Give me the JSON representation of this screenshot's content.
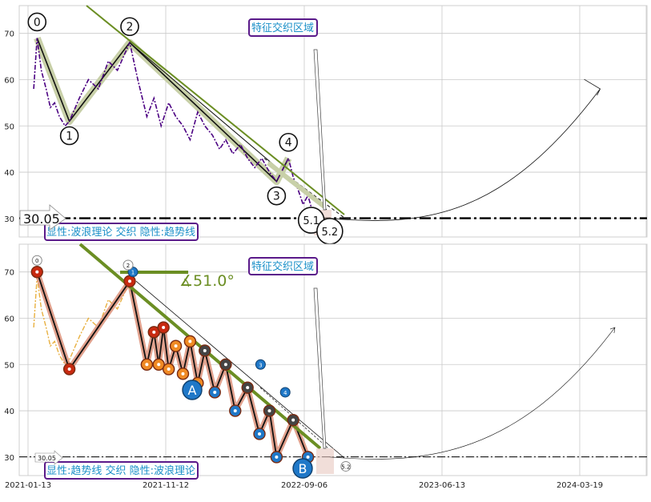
{
  "colors": {
    "grid": "#c9c9c9",
    "trendline": "#6b8e23",
    "price_top": "#4b0082",
    "price_bottom": "#e8b040",
    "wave_halo": "#c8d0a8",
    "wave_halo_bottom": "#d98a70",
    "box_border": "#5a1a8a",
    "box_text": "#1a8fc8",
    "orange_marker": "#f08a24",
    "red_marker": "#c82a10",
    "blue_marker": "#1f78c8",
    "dark_marker": "#444444"
  },
  "chart_data": [
    {
      "type": "line",
      "panel": "top",
      "title": "",
      "xlabel": "",
      "ylabel": "",
      "ylim": [
        26,
        76
      ],
      "yticks": [
        "30",
        "40",
        "50",
        "60",
        "70"
      ],
      "grid": true,
      "level_line": {
        "value": 30.05,
        "label": "30.05"
      },
      "region_label": "特征交织区域",
      "caption": "显性:波浪理论 交织 隐性:趋势线",
      "wave_points": [
        {
          "label": "0",
          "date": "2021-02-01",
          "value": 69
        },
        {
          "label": "1",
          "date": "2021-04-10",
          "value": 51
        },
        {
          "label": "2",
          "date": "2021-08-15",
          "value": 68
        },
        {
          "label": "3",
          "date": "2022-06-20",
          "value": 38
        },
        {
          "label": "4",
          "date": "2022-07-15",
          "value": 43
        },
        {
          "label": "5.1",
          "date": "2022-09-01",
          "value": 31
        },
        {
          "label": "5.2",
          "date": "2022-10-10",
          "value": 30
        }
      ],
      "series": [
        {
          "style": "dash-dot",
          "x": [
            "2021-01-25",
            "2021-02-01",
            "2021-02-10",
            "2021-02-20",
            "2021-03-01",
            "2021-03-10",
            "2021-03-20",
            "2021-04-01",
            "2021-04-10",
            "2021-05-01",
            "2021-05-20",
            "2021-06-10",
            "2021-07-01",
            "2021-07-20",
            "2021-08-15",
            "2021-09-01",
            "2021-09-20",
            "2021-10-05",
            "2021-10-20",
            "2021-11-05",
            "2021-11-20",
            "2021-12-05",
            "2021-12-20",
            "2022-01-05",
            "2022-01-20",
            "2022-02-05",
            "2022-02-20",
            "2022-03-05",
            "2022-03-20",
            "2022-04-05",
            "2022-04-20",
            "2022-05-05",
            "2022-05-20",
            "2022-06-05",
            "2022-06-20",
            "2022-07-05",
            "2022-07-15",
            "2022-07-25",
            "2022-08-05",
            "2022-08-15",
            "2022-08-25",
            "2022-09-05"
          ],
          "y": [
            58,
            69,
            62,
            58,
            54,
            55,
            52,
            50,
            51,
            56,
            60,
            58,
            64,
            62,
            68,
            60,
            52,
            56,
            50,
            55,
            52,
            50,
            47,
            53,
            50,
            48,
            45,
            47,
            44,
            46,
            43,
            41,
            43,
            40,
            38,
            41,
            43,
            39,
            36,
            33,
            35,
            31
          ]
        }
      ],
      "forecast_curve": {
        "end_date": "2024-05-01",
        "end_value": 58
      }
    },
    {
      "type": "line",
      "panel": "bottom",
      "title": "",
      "xlabel": "",
      "ylabel": "",
      "ylim": [
        26,
        76
      ],
      "yticks": [
        "30",
        "40",
        "50",
        "60",
        "70"
      ],
      "xticks": [
        "2021-01-13",
        "2021-11-12",
        "2022-09-06",
        "2023-06-13",
        "2024-03-19"
      ],
      "grid": true,
      "level_line": {
        "value": 30.05,
        "label": "30.05"
      },
      "region_label": "特征交织区域",
      "caption": "显性:趋势线 交织 隐性:波浪理论",
      "angle_label": "∡51.0°",
      "point_labels": [
        "A",
        "B"
      ],
      "small_labels": [
        "0",
        "1",
        "2",
        "3",
        "4",
        "5.2"
      ],
      "zigzag": [
        {
          "date": "2021-02-01",
          "value": 70
        },
        {
          "date": "2021-04-10",
          "value": 49
        },
        {
          "date": "2021-08-15",
          "value": 68
        },
        {
          "date": "2021-09-20",
          "value": 50
        },
        {
          "date": "2021-10-05",
          "value": 57
        },
        {
          "date": "2021-10-15",
          "value": 50
        },
        {
          "date": "2021-10-25",
          "value": 58
        },
        {
          "date": "2021-11-05",
          "value": 49
        },
        {
          "date": "2021-11-20",
          "value": 54
        },
        {
          "date": "2021-12-05",
          "value": 48
        },
        {
          "date": "2021-12-20",
          "value": 55
        },
        {
          "date": "2022-01-05",
          "value": 46
        },
        {
          "date": "2022-01-20",
          "value": 53
        },
        {
          "date": "2022-02-10",
          "value": 44
        },
        {
          "date": "2022-03-05",
          "value": 50
        },
        {
          "date": "2022-03-25",
          "value": 40
        },
        {
          "date": "2022-04-20",
          "value": 45
        },
        {
          "date": "2022-05-15",
          "value": 35
        },
        {
          "date": "2022-06-05",
          "value": 40
        },
        {
          "date": "2022-06-20",
          "value": 30
        },
        {
          "date": "2022-07-25",
          "value": 38
        },
        {
          "date": "2022-08-25",
          "value": 30
        }
      ],
      "series": [
        {
          "style": "dash-dot",
          "x": [
            "2021-01-25",
            "2021-02-01",
            "2021-02-10",
            "2021-02-20",
            "2021-03-01",
            "2021-03-10",
            "2021-03-20",
            "2021-04-01",
            "2021-04-10",
            "2021-05-01",
            "2021-05-20",
            "2021-06-10",
            "2021-07-01",
            "2021-07-20",
            "2021-08-15",
            "2021-09-01"
          ],
          "y": [
            58,
            69,
            62,
            58,
            54,
            55,
            52,
            50,
            51,
            56,
            60,
            58,
            64,
            62,
            68,
            60
          ]
        }
      ],
      "forecast_curve": {
        "end_date": "2024-06-01",
        "end_value": 58
      }
    }
  ]
}
